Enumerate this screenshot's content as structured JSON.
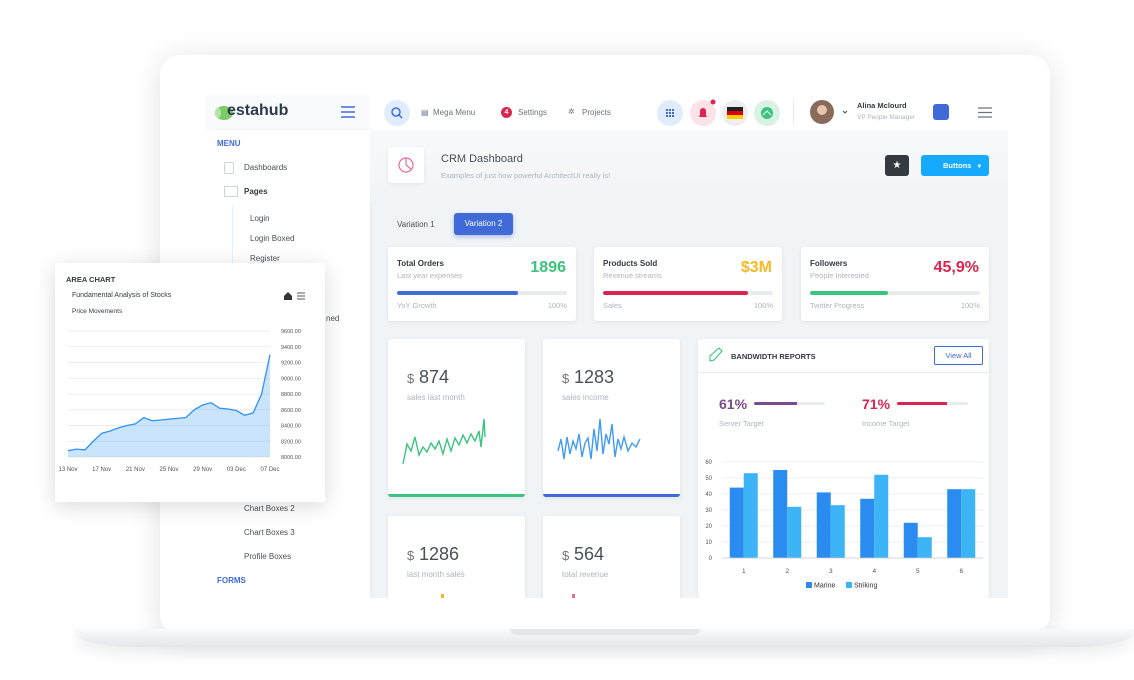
{
  "header": {
    "logo": "estahub",
    "mega_menu": "Mega Menu",
    "settings": "Settings",
    "settings_badge": 4,
    "projects": "Projects",
    "user_name": "Alina Mclourd",
    "user_role": "VP People Manager"
  },
  "sidebar": {
    "menu_heading": "MENU",
    "items": [
      "Dashboards",
      "Pages",
      "Login",
      "Login Boxed",
      "Register",
      "ned",
      "Chart Boxes 2",
      "Chart Boxes 3",
      "Profile Boxes"
    ],
    "forms_heading": "FORMS"
  },
  "page_header": {
    "title": "CRM Dashboard",
    "subtitle": "Examples of just how powerful ArchitectUI really is!",
    "button": "Buttons"
  },
  "tabs": [
    "Variation 1",
    "Variation 2"
  ],
  "stat_cards": [
    {
      "title": "Total Orders",
      "subtitle": "Last year expenses",
      "value": "1896",
      "value_color": "#3ac47d",
      "progress": 71,
      "progress_color": "#3f6ad8",
      "progress_label": "YoY Growth",
      "progress_max": "100%"
    },
    {
      "title": "Products Sold",
      "subtitle": "Revenue streams",
      "value": "$3M",
      "value_color": "#f7b924",
      "progress": 85,
      "progress_color": "#d92550",
      "progress_label": "Sales",
      "progress_max": "100%"
    },
    {
      "title": "Followers",
      "subtitle": "People Interested",
      "value": "45,9%",
      "value_color": "#d92550",
      "progress": 46,
      "progress_color": "#3ac47d",
      "progress_label": "Twitter Progress",
      "progress_max": "100%"
    }
  ],
  "mini_cards": [
    {
      "currency": "$",
      "value": 874,
      "label": "sales last month"
    },
    {
      "currency": "$",
      "value": 1283,
      "label": "sales income"
    },
    {
      "currency": "$",
      "value": 1286,
      "label": "last month sales"
    },
    {
      "currency": "$",
      "value": 564,
      "label": "total revenue"
    }
  ],
  "bandwidth": {
    "title": "BANDWIDTH REPORTS",
    "button": "View All",
    "targets": [
      {
        "value": 61,
        "value_label": "61%",
        "label": "Server Target",
        "color": "#794c8a"
      },
      {
        "value": 71,
        "value_label": "71%",
        "label": "Income Target",
        "color": "#d92550"
      }
    ]
  },
  "area_card": {
    "heading": "AREA CHART"
  },
  "chart_data": [
    {
      "type": "area",
      "title": "Fundamental Analysis of Stocks",
      "subtitle": "Price Movements",
      "color": "#2e93fa",
      "categories": [
        "13 Nov",
        null,
        null,
        null,
        "17 Nov",
        null,
        null,
        null,
        "21 Nov",
        null,
        null,
        null,
        "25 Nov",
        null,
        null,
        null,
        "29 Nov",
        null,
        null,
        null,
        "03 Dec",
        null,
        null,
        null,
        "07 Dec"
      ],
      "values": [
        8080,
        8100,
        8090,
        8200,
        8300,
        8330,
        8370,
        8400,
        8420,
        8500,
        8460,
        8470,
        8480,
        8490,
        8500,
        8600,
        8660,
        8690,
        8620,
        8610,
        8590,
        8530,
        8560,
        8800,
        9300
      ],
      "ylim": [
        8000,
        9600
      ],
      "yticks": [
        {
          "value": 8000,
          "label": "8000.00"
        },
        {
          "value": 8200,
          "label": "8200.00"
        },
        {
          "value": 8400,
          "label": "8400.00"
        },
        {
          "value": 8600,
          "label": "8600.00"
        },
        {
          "value": 8800,
          "label": "8800.00"
        },
        {
          "value": 9000,
          "label": "9000.00"
        },
        {
          "value": 9200,
          "label": "9200.00"
        },
        {
          "value": 9400,
          "label": "9400.00"
        },
        {
          "value": 9600,
          "label": "9600.00"
        }
      ],
      "grid": true
    },
    {
      "type": "bar",
      "categories": [
        "1",
        "2",
        "3",
        "4",
        "5",
        "6"
      ],
      "series": [
        {
          "name": "Marine",
          "color": "#2a8cf0",
          "values": [
            44,
            55,
            41,
            37,
            22,
            43
          ]
        },
        {
          "name": "Striking",
          "color": "#3cb4f5",
          "values": [
            53,
            32,
            33,
            52,
            13,
            43
          ]
        }
      ],
      "ylim": [
        0,
        60
      ],
      "yticks": [
        0,
        10,
        20,
        30,
        40,
        50,
        60
      ],
      "grid": true,
      "legend": "bottom"
    }
  ]
}
